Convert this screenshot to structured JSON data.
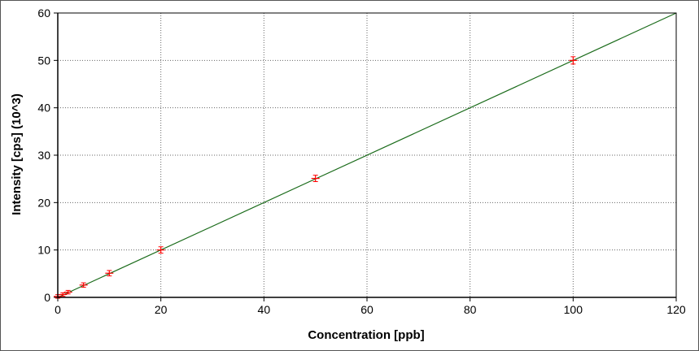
{
  "chart_data": {
    "type": "scatter",
    "title": "",
    "xlabel": "Concentration [ppb]",
    "ylabel": "Intensity [cps] (10^3)",
    "xlim": [
      0,
      120
    ],
    "ylim": [
      0,
      60
    ],
    "x_ticks": [
      0,
      20,
      40,
      60,
      80,
      100,
      120
    ],
    "y_ticks": [
      0,
      10,
      20,
      30,
      40,
      50,
      60
    ],
    "grid": true,
    "legend": "none",
    "colors": {
      "points": "#ff0000",
      "fit_line": "#1a6b1a",
      "grid": "#666666",
      "axis": "#000000"
    },
    "series": [
      {
        "x": [
          0,
          1,
          2,
          5,
          10,
          20,
          50,
          100
        ],
        "y": [
          0.2,
          0.6,
          1.1,
          2.6,
          5.1,
          10.0,
          25.1,
          50.0
        ],
        "y_error": [
          0.2,
          0.2,
          0.2,
          0.3,
          0.4,
          0.5,
          0.5,
          0.6
        ]
      }
    ],
    "fit_line": {
      "slope": 0.5,
      "intercept": 0,
      "x_range": [
        0,
        120
      ]
    }
  }
}
